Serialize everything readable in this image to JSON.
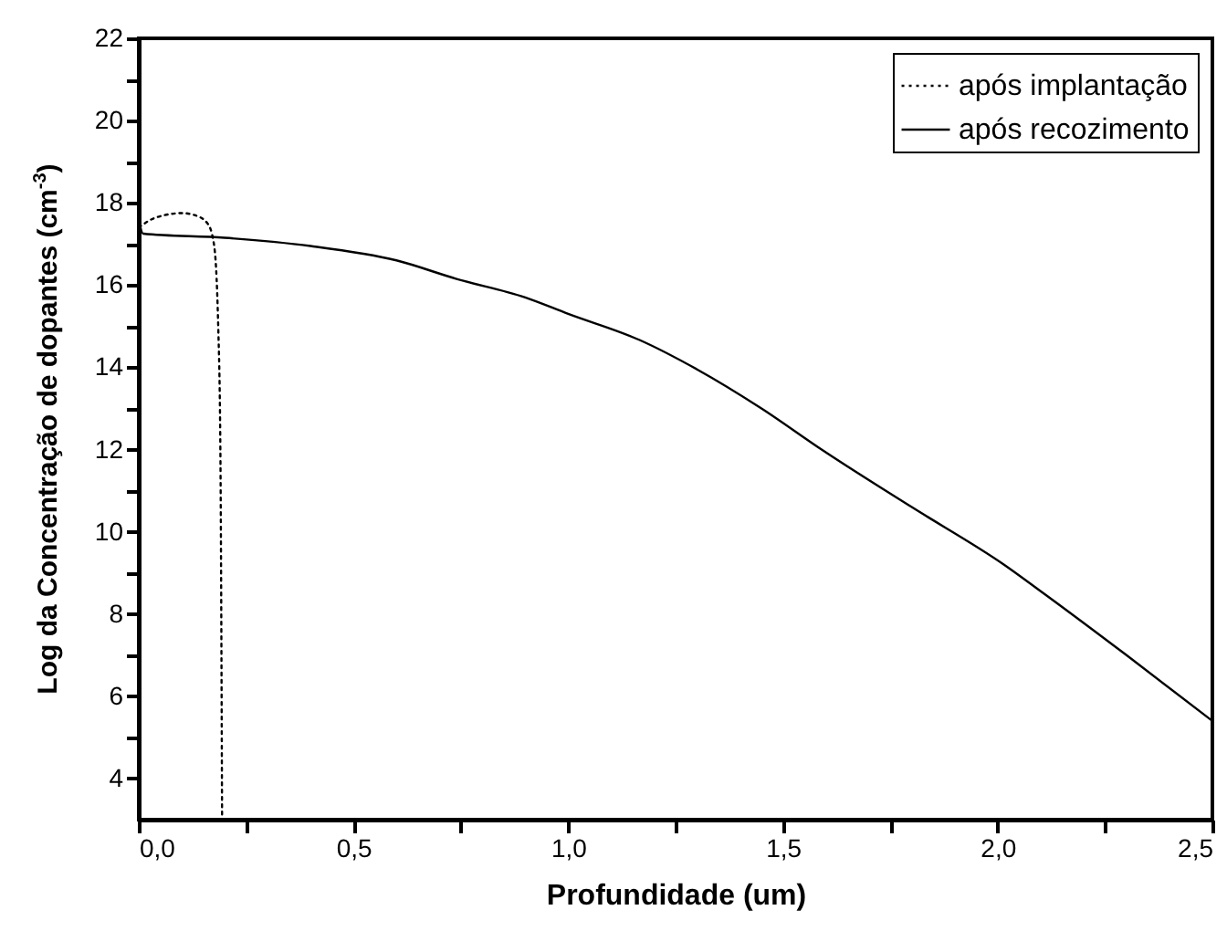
{
  "chart_data": {
    "type": "line",
    "xlabel": "Profundidade (um)",
    "ylabel": "Log da Concentração de dopantes (cm$^{-3}$)",
    "xlim": [
      0,
      2.5
    ],
    "ylim": [
      3,
      22
    ],
    "xticks": [
      {
        "value": 0,
        "label": "0,0"
      },
      {
        "value": 0.25,
        "label": null
      },
      {
        "value": 0.5,
        "label": "0,5"
      },
      {
        "value": 0.75,
        "label": null
      },
      {
        "value": 1,
        "label": "1,0"
      },
      {
        "value": 1.25,
        "label": null
      },
      {
        "value": 1.5,
        "label": "1,5"
      },
      {
        "value": 1.75,
        "label": null
      },
      {
        "value": 2,
        "label": "2,0"
      },
      {
        "value": 2.25,
        "label": null
      },
      {
        "value": 2.5,
        "label": "2,5"
      }
    ],
    "yticks": [
      4,
      {
        "value": 5,
        "label": null
      },
      6,
      {
        "value": 7,
        "label": null
      },
      8,
      {
        "value": 9,
        "label": null
      },
      10,
      {
        "value": 11,
        "label": null
      },
      12,
      {
        "value": 13,
        "label": null
      },
      14,
      {
        "value": 15,
        "label": null
      },
      16,
      {
        "value": 17,
        "label": null
      },
      18,
      {
        "value": 19,
        "label": null
      },
      20,
      {
        "value": 21,
        "label": null
      },
      22
    ],
    "grid": false,
    "legend": "top right",
    "marker": "none",
    "series": [
      {
        "name": "após implantação",
        "color": "#000000",
        "line_style": "dotted",
        "x": [
          0,
          0.03,
          0.06,
          0.1,
          0.13,
          0.16,
          0.175,
          0.185,
          0.19,
          0.194
        ],
        "values": [
          17.4,
          17.6,
          17.7,
          17.75,
          17.7,
          17.5,
          17.0,
          15,
          12,
          3
        ]
      },
      {
        "name": "após recozimento",
        "color": "#000000",
        "line_style": "solid",
        "x": [
          0,
          0.01,
          0.2,
          0.4,
          0.6,
          0.74,
          0.9,
          1.0,
          1.165,
          1.3,
          1.45,
          1.59,
          1.8,
          2.015,
          2.114,
          2.3,
          2.5
        ],
        "values": [
          17.6,
          17.25,
          17.15,
          16.95,
          16.6,
          16.15,
          15.7,
          15.3,
          14.67,
          13.95,
          13.0,
          12.0,
          10.6,
          9.2,
          8.45,
          7.0,
          5.4
        ]
      }
    ]
  }
}
